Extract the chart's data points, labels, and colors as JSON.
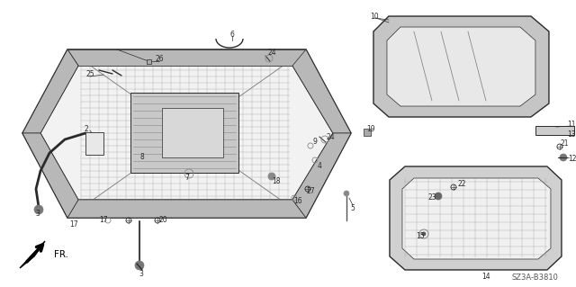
{
  "background_color": "#ffffff",
  "diagram_ref": "SZ3A-B3810",
  "fig_width": 6.4,
  "fig_height": 3.19,
  "dpi": 100,
  "line_color": "#2a2a2a",
  "text_color": "#2a2a2a",
  "label_fontsize": 5.5,
  "ref_fontsize": 6.0,
  "hatch_color": "#888888",
  "frame_fill": "#e0e0e0",
  "inner_fill": "#f0f0f0",
  "glass_fill": "#d8d8d8",
  "panel_fill": "#e8e8e8"
}
